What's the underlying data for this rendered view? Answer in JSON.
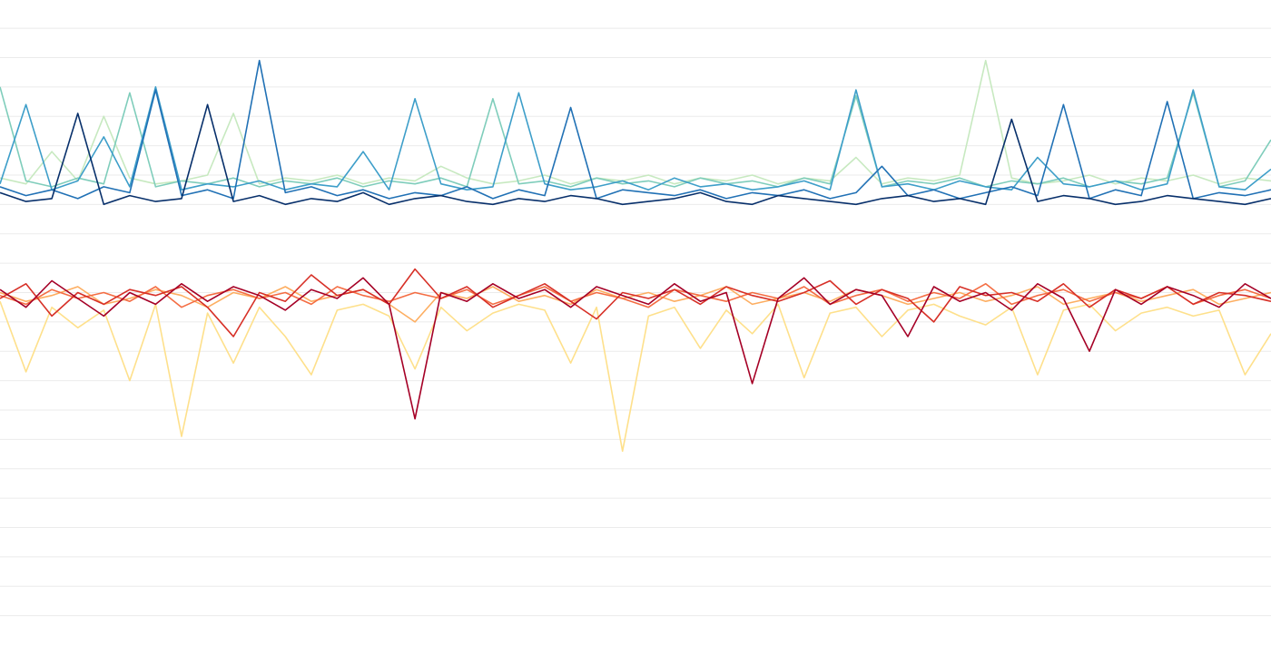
{
  "chart_data": {
    "type": "line",
    "title": "",
    "xlabel": "",
    "ylabel": "",
    "grid": true,
    "grid_values": [
      1,
      2,
      3,
      4,
      5,
      6,
      7,
      8,
      9,
      10,
      11,
      12,
      13,
      14,
      15,
      16,
      17,
      18,
      19,
      20,
      21
    ],
    "xlim": [
      0,
      49
    ],
    "ylim": [
      0,
      21.96
    ],
    "x": [
      0,
      1,
      2,
      3,
      4,
      5,
      6,
      7,
      8,
      9,
      10,
      11,
      12,
      13,
      14,
      15,
      16,
      17,
      18,
      19,
      20,
      21,
      22,
      23,
      24,
      25,
      26,
      27,
      28,
      29,
      30,
      31,
      32,
      33,
      34,
      35,
      36,
      37,
      38,
      39,
      40,
      41,
      42,
      43,
      44,
      45,
      46,
      47,
      48,
      49
    ],
    "series": [
      {
        "color": "#c7e9c0",
        "values": [
          15.9,
          15.7,
          16.8,
          15.8,
          18.0,
          15.9,
          15.7,
          15.8,
          16.0,
          18.1,
          15.7,
          15.9,
          15.8,
          16.0,
          15.7,
          15.9,
          15.8,
          16.3,
          15.9,
          15.7,
          15.8,
          16.0,
          15.7,
          15.9,
          15.8,
          16.0,
          15.7,
          15.9,
          15.8,
          16.0,
          15.7,
          15.9,
          15.8,
          16.6,
          15.7,
          15.9,
          15.8,
          16.0,
          19.9,
          15.9,
          15.7,
          15.8,
          16.0,
          15.7,
          15.9,
          15.8,
          16.0,
          15.7,
          15.9,
          15.8
        ]
      },
      {
        "color": "#7fcdbb",
        "values": [
          19.0,
          15.8,
          15.6,
          15.9,
          15.7,
          18.8,
          15.6,
          15.8,
          15.7,
          15.9,
          15.6,
          15.8,
          15.7,
          15.9,
          15.6,
          15.8,
          15.7,
          15.9,
          15.6,
          18.6,
          15.7,
          15.8,
          15.6,
          15.9,
          15.7,
          15.8,
          15.6,
          15.9,
          15.7,
          15.8,
          15.6,
          15.9,
          15.7,
          18.7,
          15.6,
          15.8,
          15.7,
          15.9,
          15.6,
          15.8,
          15.7,
          15.9,
          15.6,
          15.8,
          15.7,
          15.9,
          18.8,
          15.6,
          15.8,
          17.2
        ]
      },
      {
        "color": "#3d9ec9",
        "values": [
          15.7,
          18.4,
          15.5,
          15.8,
          17.3,
          15.6,
          19.0,
          15.5,
          15.7,
          15.6,
          15.8,
          15.5,
          15.7,
          15.6,
          16.8,
          15.5,
          18.6,
          15.7,
          15.5,
          15.6,
          18.8,
          15.7,
          15.5,
          15.6,
          15.8,
          15.5,
          15.9,
          15.6,
          15.7,
          15.5,
          15.6,
          15.8,
          15.5,
          18.9,
          15.6,
          15.7,
          15.5,
          15.8,
          15.6,
          15.5,
          16.6,
          15.7,
          15.6,
          15.8,
          15.5,
          15.7,
          18.9,
          15.6,
          15.5,
          16.2
        ]
      },
      {
        "color": "#2171b5",
        "values": [
          15.6,
          15.3,
          15.5,
          15.2,
          15.6,
          15.4,
          18.9,
          15.3,
          15.5,
          15.2,
          19.9,
          15.4,
          15.6,
          15.3,
          15.5,
          15.2,
          15.4,
          15.3,
          15.6,
          15.2,
          15.5,
          15.3,
          18.3,
          15.2,
          15.5,
          15.4,
          15.3,
          15.5,
          15.2,
          15.4,
          15.3,
          15.5,
          15.2,
          15.4,
          16.3,
          15.3,
          15.5,
          15.2,
          15.4,
          15.6,
          15.3,
          18.4,
          15.2,
          15.5,
          15.3,
          18.5,
          15.2,
          15.4,
          15.3,
          15.5
        ]
      },
      {
        "color": "#08306b",
        "values": [
          15.4,
          15.1,
          15.2,
          18.1,
          15.0,
          15.3,
          15.1,
          15.2,
          18.4,
          15.1,
          15.3,
          15.0,
          15.2,
          15.1,
          15.4,
          15.0,
          15.2,
          15.3,
          15.1,
          15.0,
          15.2,
          15.1,
          15.3,
          15.2,
          15.0,
          15.1,
          15.2,
          15.4,
          15.1,
          15.0,
          15.3,
          15.2,
          15.1,
          15.0,
          15.2,
          15.3,
          15.1,
          15.2,
          15.0,
          17.9,
          15.1,
          15.3,
          15.2,
          15.0,
          15.1,
          15.3,
          15.2,
          15.1,
          15.0,
          15.2
        ]
      },
      {
        "color": "#fee08b",
        "values": [
          11.7,
          9.3,
          11.5,
          10.8,
          11.4,
          9.0,
          11.6,
          7.1,
          11.3,
          9.6,
          11.5,
          10.5,
          9.2,
          11.4,
          11.6,
          11.2,
          9.4,
          11.5,
          10.7,
          11.3,
          11.6,
          11.4,
          9.6,
          11.5,
          6.6,
          11.2,
          11.5,
          10.1,
          11.4,
          10.6,
          11.6,
          9.1,
          11.3,
          11.5,
          10.5,
          11.4,
          11.6,
          11.2,
          10.9,
          11.5,
          9.2,
          11.4,
          11.6,
          10.7,
          11.3,
          11.5,
          11.2,
          11.4,
          9.2,
          10.6
        ]
      },
      {
        "color": "#fdae61",
        "values": [
          12.0,
          11.7,
          11.9,
          12.2,
          11.6,
          11.8,
          12.1,
          11.9,
          11.5,
          12.0,
          11.8,
          12.2,
          11.7,
          11.9,
          12.1,
          11.6,
          11.0,
          12.0,
          11.8,
          12.2,
          11.7,
          11.9,
          11.6,
          12.1,
          11.8,
          12.0,
          11.7,
          11.9,
          12.2,
          11.6,
          11.8,
          12.0,
          11.7,
          12.1,
          11.9,
          11.6,
          11.8,
          12.0,
          11.7,
          11.9,
          12.2,
          11.6,
          11.8,
          12.0,
          11.7,
          11.9,
          12.1,
          11.6,
          11.8,
          12.0
        ]
      },
      {
        "color": "#f46d43",
        "values": [
          11.9,
          11.6,
          12.1,
          11.8,
          12.0,
          11.7,
          12.2,
          11.5,
          11.9,
          12.1,
          11.8,
          12.0,
          11.6,
          12.2,
          11.9,
          11.7,
          12.0,
          11.8,
          12.1,
          11.6,
          11.9,
          12.2,
          11.7,
          12.0,
          11.8,
          11.5,
          12.1,
          11.9,
          11.7,
          12.0,
          11.8,
          12.2,
          11.6,
          11.9,
          12.1,
          11.7,
          12.0,
          11.8,
          12.3,
          11.6,
          11.9,
          12.1,
          11.7,
          12.0,
          11.8,
          12.2,
          11.6,
          11.9,
          12.1,
          11.8
        ]
      },
      {
        "color": "#d73027",
        "values": [
          11.8,
          12.3,
          11.2,
          12.0,
          11.6,
          12.1,
          11.9,
          12.2,
          11.5,
          10.5,
          12.0,
          11.7,
          12.6,
          11.9,
          12.1,
          11.6,
          12.8,
          11.8,
          12.2,
          11.5,
          11.9,
          12.3,
          11.7,
          11.1,
          12.0,
          11.8,
          12.1,
          11.6,
          12.2,
          11.9,
          11.7,
          12.0,
          12.4,
          11.6,
          12.1,
          11.8,
          11.0,
          12.2,
          11.9,
          12.0,
          11.7,
          12.3,
          11.5,
          12.1,
          11.8,
          12.2,
          11.6,
          12.0,
          11.9,
          11.7
        ]
      },
      {
        "color": "#a50026",
        "values": [
          12.1,
          11.5,
          12.4,
          11.8,
          11.2,
          12.0,
          11.6,
          12.3,
          11.7,
          12.2,
          11.9,
          11.4,
          12.1,
          11.8,
          12.5,
          11.6,
          7.7,
          12.0,
          11.7,
          12.3,
          11.8,
          12.1,
          11.5,
          12.2,
          11.9,
          11.6,
          12.3,
          11.7,
          12.0,
          8.9,
          11.8,
          12.5,
          11.6,
          12.1,
          11.9,
          10.5,
          12.2,
          11.7,
          12.0,
          11.4,
          12.3,
          11.8,
          10.0,
          12.1,
          11.6,
          12.2,
          11.9,
          11.5,
          12.3,
          11.8
        ]
      }
    ]
  }
}
